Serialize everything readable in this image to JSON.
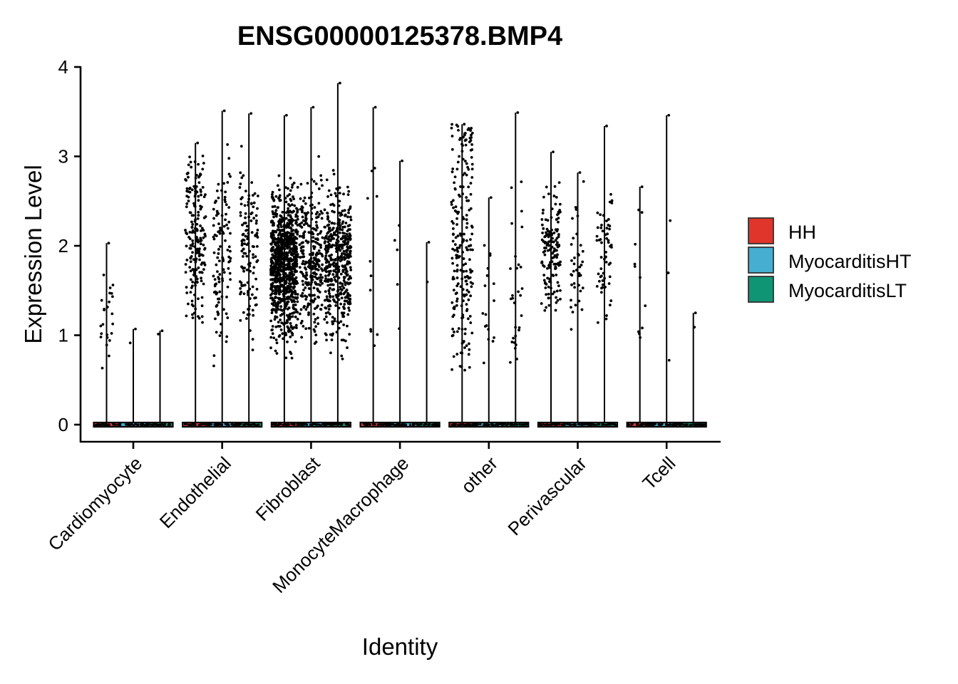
{
  "chart_data": {
    "type": "violin",
    "title": "ENSG00000125378.BMP4",
    "xlabel": "Identity",
    "ylabel": "Expression Level",
    "ylim": [
      -0.18,
      4.05
    ],
    "yticks": [
      0,
      1,
      2,
      3,
      4
    ],
    "categories": [
      "Cardiomyocyte",
      "Endothelial",
      "Fibroblast",
      "MonocyteMacrophage",
      "other",
      "Perivascular",
      "Tcell"
    ],
    "legend_position": "right",
    "grid": false,
    "series": [
      {
        "name": "HH",
        "color": "#e0352a"
      },
      {
        "name": "MyocarditisHT",
        "color": "#45aed1"
      },
      {
        "name": "MyocarditisLT",
        "color": "#0f9474"
      }
    ],
    "groups": [
      {
        "category": "Cardiomyocyte",
        "series": "HH",
        "max": 2.03,
        "n_expr": 25,
        "center": 1.2,
        "spread": 0.28
      },
      {
        "category": "Cardiomyocyte",
        "series": "MyocarditisHT",
        "max": 1.07,
        "n_expr": 2,
        "center": 1.0,
        "spread": 0.1
      },
      {
        "category": "Cardiomyocyte",
        "series": "MyocarditisLT",
        "max": 1.05,
        "n_expr": 2,
        "center": 0.95,
        "spread": 0.1
      },
      {
        "category": "Endothelial",
        "series": "HH",
        "max": 3.15,
        "n_expr": 200,
        "center": 2.1,
        "spread": 0.45
      },
      {
        "category": "Endothelial",
        "series": "MyocarditisHT",
        "max": 3.51,
        "n_expr": 110,
        "center": 1.9,
        "spread": 0.5
      },
      {
        "category": "Endothelial",
        "series": "MyocarditisLT",
        "max": 3.48,
        "n_expr": 130,
        "center": 1.95,
        "spread": 0.45
      },
      {
        "category": "Fibroblast",
        "series": "HH",
        "max": 3.46,
        "n_expr": 900,
        "center": 1.8,
        "spread": 0.38
      },
      {
        "category": "Fibroblast",
        "series": "MyocarditisHT",
        "max": 3.55,
        "n_expr": 280,
        "center": 1.85,
        "spread": 0.42
      },
      {
        "category": "Fibroblast",
        "series": "MyocarditisLT",
        "max": 3.82,
        "n_expr": 450,
        "center": 1.8,
        "spread": 0.38
      },
      {
        "category": "MonocyteMacrophage",
        "series": "HH",
        "max": 3.55,
        "n_expr": 12,
        "center": 1.8,
        "spread": 0.75
      },
      {
        "category": "MonocyteMacrophage",
        "series": "MyocarditisHT",
        "max": 2.95,
        "n_expr": 6,
        "center": 2.0,
        "spread": 0.45
      },
      {
        "category": "MonocyteMacrophage",
        "series": "MyocarditisLT",
        "max": 2.04,
        "n_expr": 2,
        "center": 1.6,
        "spread": 0.45
      },
      {
        "category": "other",
        "series": "HH",
        "max": 3.36,
        "n_expr": 220,
        "center": 2.0,
        "spread": 0.75
      },
      {
        "category": "other",
        "series": "MyocarditisHT",
        "max": 2.54,
        "n_expr": 18,
        "center": 1.4,
        "spread": 0.45
      },
      {
        "category": "other",
        "series": "MyocarditisLT",
        "max": 3.49,
        "n_expr": 30,
        "center": 1.5,
        "spread": 0.65
      },
      {
        "category": "Perivascular",
        "series": "HH",
        "max": 3.05,
        "n_expr": 150,
        "center": 1.95,
        "spread": 0.32
      },
      {
        "category": "Perivascular",
        "series": "MyocarditisHT",
        "max": 2.82,
        "n_expr": 40,
        "center": 1.8,
        "spread": 0.38
      },
      {
        "category": "Perivascular",
        "series": "MyocarditisLT",
        "max": 3.34,
        "n_expr": 60,
        "center": 1.85,
        "spread": 0.35
      },
      {
        "category": "Tcell",
        "series": "HH",
        "max": 2.66,
        "n_expr": 12,
        "center": 1.7,
        "spread": 0.45
      },
      {
        "category": "Tcell",
        "series": "MyocarditisHT",
        "max": 3.46,
        "n_expr": 4,
        "center": 1.8,
        "spread": 0.8
      },
      {
        "category": "Tcell",
        "series": "MyocarditisLT",
        "max": 1.25,
        "n_expr": 2,
        "center": 1.2,
        "spread": 0.05
      }
    ]
  }
}
